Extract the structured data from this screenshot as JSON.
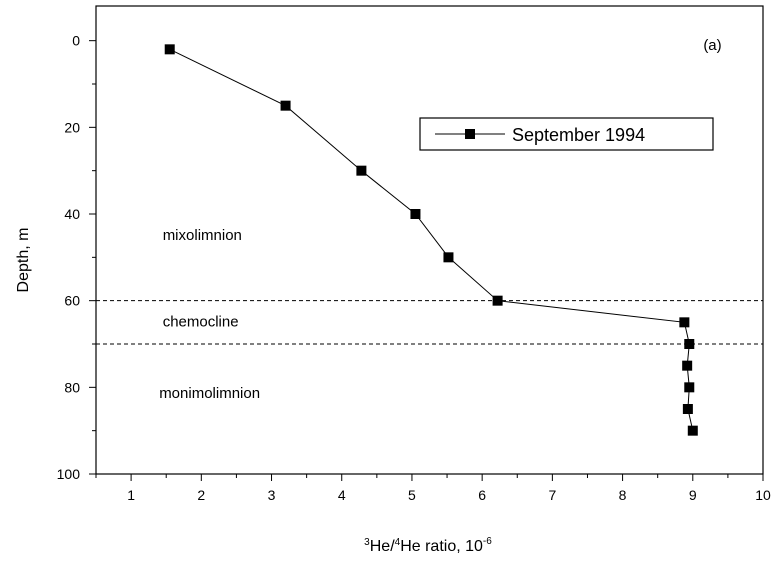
{
  "chart_data": {
    "type": "line",
    "xlabel": {
      "prefix_sup": "3",
      "mid": "He/",
      "mid_sup": "4",
      "suffix": "He ratio, 10",
      "exp": "-6"
    },
    "ylabel": "Depth, m",
    "xlim": [
      0.5,
      10
    ],
    "ylim": [
      100,
      -8
    ],
    "y_inverted": true,
    "xticks": [
      1,
      2,
      3,
      4,
      5,
      6,
      7,
      8,
      9,
      10
    ],
    "yticks": [
      0,
      20,
      40,
      60,
      80,
      100
    ],
    "grid": false,
    "legend_position": "top-right",
    "series": [
      {
        "name": "September 1994",
        "marker": "square",
        "color": "#000000",
        "x": [
          1.55,
          3.2,
          4.28,
          5.05,
          5.52,
          6.22,
          8.88,
          8.95,
          8.92,
          8.95,
          8.93,
          9.0
        ],
        "y": [
          2,
          15,
          30,
          40,
          50,
          60,
          65,
          70,
          75,
          80,
          85,
          90
        ]
      }
    ],
    "reference_lines": [
      {
        "axis": "y",
        "value": 60,
        "style": "dashed"
      },
      {
        "axis": "y",
        "value": 70,
        "style": "dashed"
      }
    ],
    "annotations": [
      {
        "text": "(a)",
        "x": 9.15,
        "y": 2.2
      },
      {
        "text": "mixolimnion",
        "x": 1.45,
        "y": 46
      },
      {
        "text": "chemocline",
        "x": 1.45,
        "y": 66
      },
      {
        "text": "monimolimnion",
        "x": 1.4,
        "y": 82.5
      }
    ]
  }
}
